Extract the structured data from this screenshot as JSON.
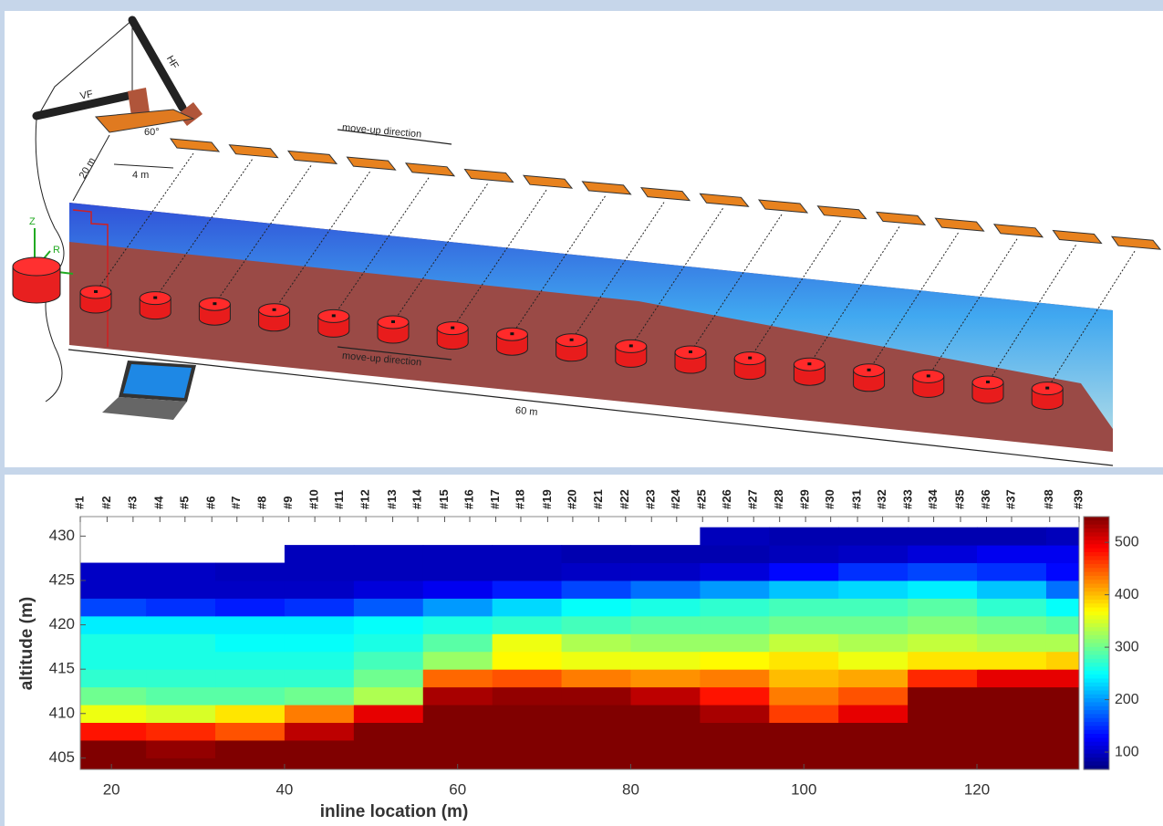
{
  "diagram": {
    "hf": "HF",
    "vf": "VF",
    "angle": "60°",
    "spacing": "4 m",
    "offset": "20 m",
    "move_up_top": "move-up direction",
    "move_up_bottom": "move-up direction",
    "length": "60 m",
    "axis_z": "Z",
    "axis_r": "R"
  },
  "chart_data": {
    "type": "heatmap",
    "x_label": "inline location (m)",
    "y_label": "altitude (m)",
    "colormap": "jet",
    "x": [
      20,
      28,
      36,
      44,
      52,
      60,
      68,
      76,
      84,
      92,
      100,
      108,
      116,
      124,
      132
    ],
    "y": [
      404,
      406,
      408,
      410,
      412,
      414,
      416,
      418,
      420,
      422,
      424,
      426,
      428,
      430
    ],
    "values": [
      [
        550,
        550,
        550,
        550,
        550,
        550,
        550,
        550,
        550,
        550,
        550,
        550,
        550,
        550,
        550
      ],
      [
        550,
        540,
        550,
        550,
        550,
        550,
        550,
        550,
        550,
        550,
        550,
        550,
        550,
        550,
        550
      ],
      [
        480,
        470,
        450,
        520,
        550,
        550,
        550,
        550,
        550,
        550,
        550,
        550,
        550,
        550,
        550
      ],
      [
        360,
        350,
        380,
        430,
        500,
        550,
        550,
        550,
        550,
        530,
        460,
        500,
        550,
        550,
        550
      ],
      [
        300,
        290,
        290,
        300,
        330,
        530,
        540,
        540,
        520,
        480,
        430,
        450,
        550,
        550,
        550
      ],
      [
        270,
        270,
        270,
        270,
        300,
        440,
        450,
        430,
        420,
        430,
        400,
        410,
        470,
        500,
        500
      ],
      [
        260,
        260,
        260,
        260,
        280,
        320,
        370,
        360,
        360,
        370,
        380,
        360,
        380,
        380,
        390
      ],
      [
        260,
        260,
        250,
        250,
        260,
        290,
        360,
        330,
        320,
        320,
        340,
        330,
        340,
        330,
        330
      ],
      [
        240,
        240,
        240,
        240,
        250,
        260,
        270,
        280,
        290,
        290,
        300,
        300,
        310,
        300,
        290
      ],
      [
        160,
        150,
        140,
        150,
        170,
        200,
        230,
        250,
        260,
        270,
        280,
        280,
        290,
        270,
        250
      ],
      [
        100,
        100,
        100,
        100,
        110,
        120,
        140,
        160,
        180,
        200,
        220,
        230,
        240,
        220,
        180
      ],
      [
        100,
        100,
        95,
        95,
        95,
        95,
        95,
        100,
        100,
        110,
        130,
        150,
        160,
        150,
        130
      ],
      [
        null,
        null,
        null,
        95,
        95,
        95,
        95,
        90,
        90,
        90,
        95,
        100,
        110,
        120,
        120
      ],
      [
        null,
        null,
        null,
        null,
        null,
        null,
        null,
        null,
        null,
        95,
        90,
        90,
        90,
        90,
        95
      ]
    ],
    "xlim": [
      16.4,
      131.8
    ],
    "ylim": [
      403.7,
      432.2
    ],
    "xticks": [
      20,
      40,
      60,
      80,
      100,
      120
    ],
    "yticks": [
      405,
      410,
      415,
      420,
      425,
      430
    ],
    "x2ticks": [
      {
        "value": 16.4,
        "label": "#1"
      },
      {
        "value": 19.5,
        "label": "#2"
      },
      {
        "value": 22.5,
        "label": "#3"
      },
      {
        "value": 25.6,
        "label": "#4"
      },
      {
        "value": 28.5,
        "label": "#5"
      },
      {
        "value": 31.6,
        "label": "#6"
      },
      {
        "value": 34.5,
        "label": "#7"
      },
      {
        "value": 37.5,
        "label": "#8"
      },
      {
        "value": 40.5,
        "label": "#9"
      },
      {
        "value": 43.5,
        "label": "#10"
      },
      {
        "value": 46.4,
        "label": "#11"
      },
      {
        "value": 49.4,
        "label": "#12"
      },
      {
        "value": 52.5,
        "label": "#13"
      },
      {
        "value": 55.4,
        "label": "#14"
      },
      {
        "value": 58.5,
        "label": "#15"
      },
      {
        "value": 61.4,
        "label": "#16"
      },
      {
        "value": 64.4,
        "label": "#17"
      },
      {
        "value": 67.3,
        "label": "#18"
      },
      {
        "value": 70.4,
        "label": "#19"
      },
      {
        "value": 73.3,
        "label": "#20"
      },
      {
        "value": 76.3,
        "label": "#21"
      },
      {
        "value": 79.4,
        "label": "#22"
      },
      {
        "value": 82.4,
        "label": "#23"
      },
      {
        "value": 85.3,
        "label": "#24"
      },
      {
        "value": 88.3,
        "label": "#25"
      },
      {
        "value": 91.2,
        "label": "#26"
      },
      {
        "value": 94.2,
        "label": "#27"
      },
      {
        "value": 97.2,
        "label": "#28"
      },
      {
        "value": 100.2,
        "label": "#29"
      },
      {
        "value": 103.1,
        "label": "#30"
      },
      {
        "value": 106.2,
        "label": "#31"
      },
      {
        "value": 109.1,
        "label": "#32"
      },
      {
        "value": 112.1,
        "label": "#33"
      },
      {
        "value": 115.0,
        "label": "#34"
      },
      {
        "value": 118.1,
        "label": "#35"
      },
      {
        "value": 121.1,
        "label": "#36"
      },
      {
        "value": 124.0,
        "label": "#37"
      },
      {
        "value": 128.4,
        "label": "#38"
      },
      {
        "value": 131.8,
        "label": "#39"
      }
    ],
    "colorbar": {
      "lim": [
        67,
        549
      ],
      "ticks": [
        100,
        200,
        300,
        400,
        500
      ]
    }
  }
}
